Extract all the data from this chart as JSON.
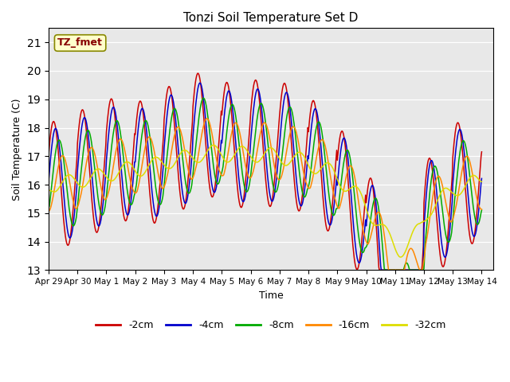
{
  "title": "Tonzi Soil Temperature Set D",
  "xlabel": "Time",
  "ylabel": "Soil Temperature (C)",
  "ylim": [
    13.0,
    21.5
  ],
  "yticks": [
    13.0,
    14.0,
    15.0,
    16.0,
    17.0,
    18.0,
    19.0,
    20.0,
    21.0
  ],
  "bg_color": "#e8e8e8",
  "annotation_text": "TZ_fmet",
  "annotation_bg": "#ffffcc",
  "annotation_border": "#888800",
  "colors": {
    "-2cm": "#cc0000",
    "-4cm": "#0000cc",
    "-8cm": "#00aa00",
    "-16cm": "#ff8800",
    "-32cm": "#dddd00"
  },
  "legend_labels": [
    "-2cm",
    "-4cm",
    "-8cm",
    "-16cm",
    "-32cm"
  ],
  "tick_labels": [
    "Apr 29",
    "Apr 30",
    "May 1",
    "May 2",
    "May 3",
    "May 4",
    "May 5",
    "May 6",
    "May 7",
    "May 8",
    "May 9",
    "May 10",
    "May 11",
    "May 12",
    "May 13",
    "May 14"
  ]
}
